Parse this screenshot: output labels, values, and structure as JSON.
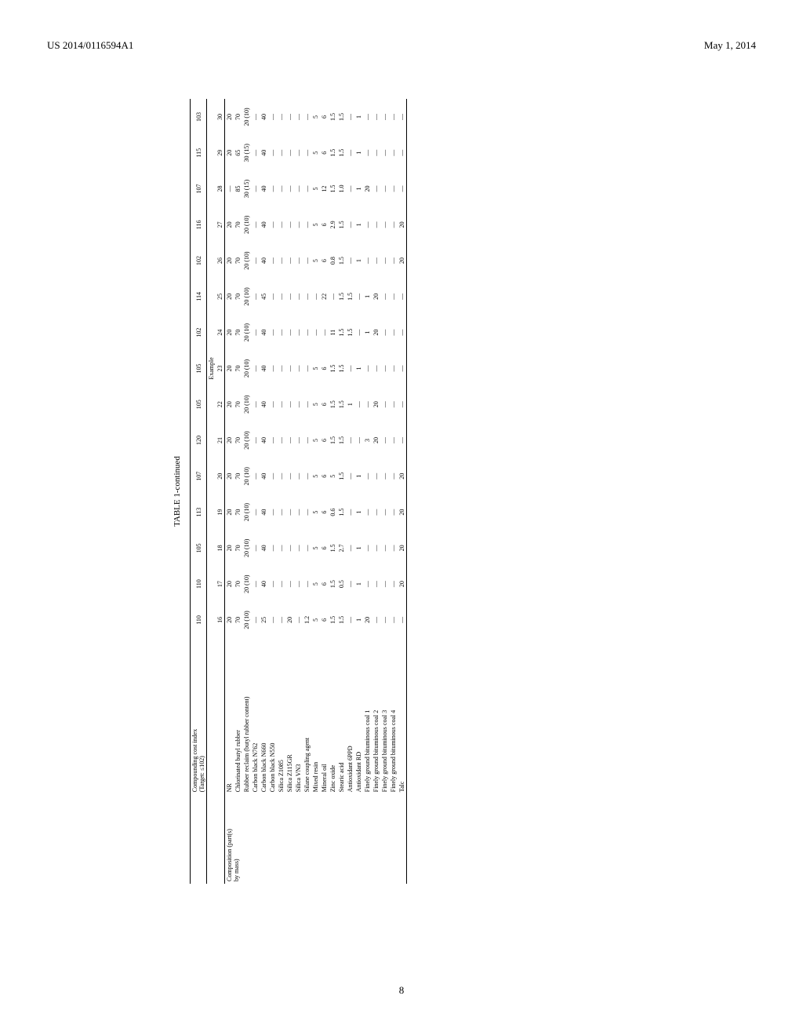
{
  "header": {
    "left": "US 2014/0116594A1",
    "right": "May 1, 2014"
  },
  "page_number": "8",
  "table": {
    "caption": "TABLE 1-continued",
    "cost_row_label": "Compounding cost index\n(Target: ≤102)",
    "cost_values": [
      "110",
      "110",
      "105",
      "113",
      "107",
      "120",
      "105",
      "105",
      "102",
      "114",
      "102",
      "116",
      "107",
      "115",
      "103"
    ],
    "example_label": "Example",
    "example_numbers": [
      "16",
      "17",
      "18",
      "19",
      "20",
      "21",
      "22",
      "23",
      "24",
      "25",
      "26",
      "27",
      "28",
      "29",
      "30"
    ],
    "group_label": "Composition (part(s) by mass)",
    "rows": [
      {
        "label": "NR",
        "v": [
          "20",
          "20",
          "20",
          "20",
          "20",
          "20",
          "20",
          "20",
          "20",
          "20",
          "20",
          "20",
          "—",
          "20",
          "20"
        ]
      },
      {
        "label": "Chlorinated butyl rubber",
        "v": [
          "70",
          "70",
          "70",
          "70",
          "70",
          "70",
          "70",
          "70",
          "70",
          "70",
          "70",
          "70",
          "85",
          "65",
          "70"
        ]
      },
      {
        "label": "Rubber reclaim (butyl rubber content)",
        "v": [
          "20 (10)",
          "20 (10)",
          "20 (10)",
          "20 (10)",
          "20 (10)",
          "20 (10)",
          "20 (10)",
          "20 (10)",
          "20 (10)",
          "20 (10)",
          "20 (10)",
          "20 (10)",
          "30 (15)",
          "30 (15)",
          "20 (10)"
        ]
      },
      {
        "label": "Carbon black N762",
        "v": [
          "—",
          "—",
          "—",
          "—",
          "—",
          "—",
          "—",
          "—",
          "—",
          "—",
          "—",
          "—",
          "—",
          "—",
          "—"
        ]
      },
      {
        "label": "Carbon black N660",
        "v": [
          "25",
          "40",
          "40",
          "40",
          "40",
          "40",
          "40",
          "40",
          "40",
          "45",
          "40",
          "40",
          "40",
          "40",
          "40"
        ]
      },
      {
        "label": "Carbon black N550",
        "v": [
          "—",
          "—",
          "—",
          "—",
          "—",
          "—",
          "—",
          "—",
          "—",
          "—",
          "—",
          "—",
          "—",
          "—",
          "—"
        ]
      },
      {
        "label": "Silica Z1085",
        "v": [
          "—",
          "—",
          "—",
          "—",
          "—",
          "—",
          "—",
          "—",
          "—",
          "—",
          "—",
          "—",
          "—",
          "—",
          "—"
        ]
      },
      {
        "label": "Silica Z115GR",
        "v": [
          "20",
          "—",
          "—",
          "—",
          "—",
          "—",
          "—",
          "—",
          "—",
          "—",
          "—",
          "—",
          "—",
          "—",
          "—"
        ]
      },
      {
        "label": "Silica VN3",
        "v": [
          "—",
          "—",
          "—",
          "—",
          "—",
          "—",
          "—",
          "—",
          "—",
          "—",
          "—",
          "—",
          "—",
          "—",
          "—"
        ]
      },
      {
        "label": "Silane coupling agent",
        "v": [
          "1.2",
          "—",
          "—",
          "—",
          "—",
          "—",
          "—",
          "—",
          "—",
          "—",
          "—",
          "—",
          "—",
          "—",
          "—"
        ]
      },
      {
        "label": "Mixed resin",
        "v": [
          "5",
          "5",
          "5",
          "5",
          "5",
          "5",
          "5",
          "5",
          "—",
          "—",
          "5",
          "5",
          "5",
          "5",
          "5"
        ]
      },
      {
        "label": "Mineral oil",
        "v": [
          "6",
          "6",
          "6",
          "6",
          "6",
          "6",
          "6",
          "6",
          "—",
          "22",
          "6",
          "6",
          "12",
          "6",
          "6"
        ]
      },
      {
        "label": "Zinc oxide",
        "v": [
          "1.5",
          "1.5",
          "1.5",
          "0.6",
          "5",
          "1.5",
          "1.5",
          "1.5",
          "11",
          "—",
          "0.8",
          "2.9",
          "1.5",
          "1.5",
          "1.5"
        ]
      },
      {
        "label": "Stearic acid",
        "v": [
          "1.5",
          "0.5",
          "2.7",
          "1.5",
          "1.5",
          "1.5",
          "1.5",
          "1.5",
          "1.5",
          "1.5",
          "1.5",
          "1.5",
          "1.0",
          "1.5",
          "1.5"
        ]
      },
      {
        "label": "Antioxidant 6PPD",
        "v": [
          "—",
          "—",
          "—",
          "—",
          "—",
          "—",
          "1",
          "—",
          "1.5",
          "1.5",
          "—",
          "—",
          "—",
          "—",
          "—"
        ]
      },
      {
        "label": "Antioxidant RD",
        "v": [
          "1",
          "1",
          "1",
          "1",
          "1",
          "—",
          "—",
          "1",
          "—",
          "—",
          "1",
          "1",
          "1",
          "1",
          "1"
        ]
      },
      {
        "label": "Finely ground bituminous coal 1",
        "v": [
          "20",
          "—",
          "—",
          "—",
          "—",
          "3",
          "—",
          "—",
          "1",
          "1",
          "—",
          "—",
          "20",
          "—",
          "—"
        ]
      },
      {
        "label": "Finely ground bituminous coal 2",
        "v": [
          "—",
          "—",
          "—",
          "—",
          "—",
          "20",
          "20",
          "—",
          "20",
          "20",
          "—",
          "—",
          "—",
          "—",
          "—"
        ]
      },
      {
        "label": "Finely ground bituminous coal 3",
        "v": [
          "—",
          "—",
          "—",
          "—",
          "—",
          "—",
          "—",
          "—",
          "—",
          "—",
          "—",
          "—",
          "—",
          "—",
          "—"
        ]
      },
      {
        "label": "Finely ground bituminous coal 4",
        "v": [
          "—",
          "—",
          "—",
          "—",
          "—",
          "—",
          "—",
          "—",
          "—",
          "—",
          "—",
          "—",
          "—",
          "—",
          "—"
        ]
      },
      {
        "label": "Talc",
        "v": [
          "—",
          "20",
          "20",
          "20",
          "20",
          "—",
          "—",
          "—",
          "—",
          "—",
          "20",
          "20",
          "—",
          "—",
          "—"
        ]
      }
    ]
  }
}
